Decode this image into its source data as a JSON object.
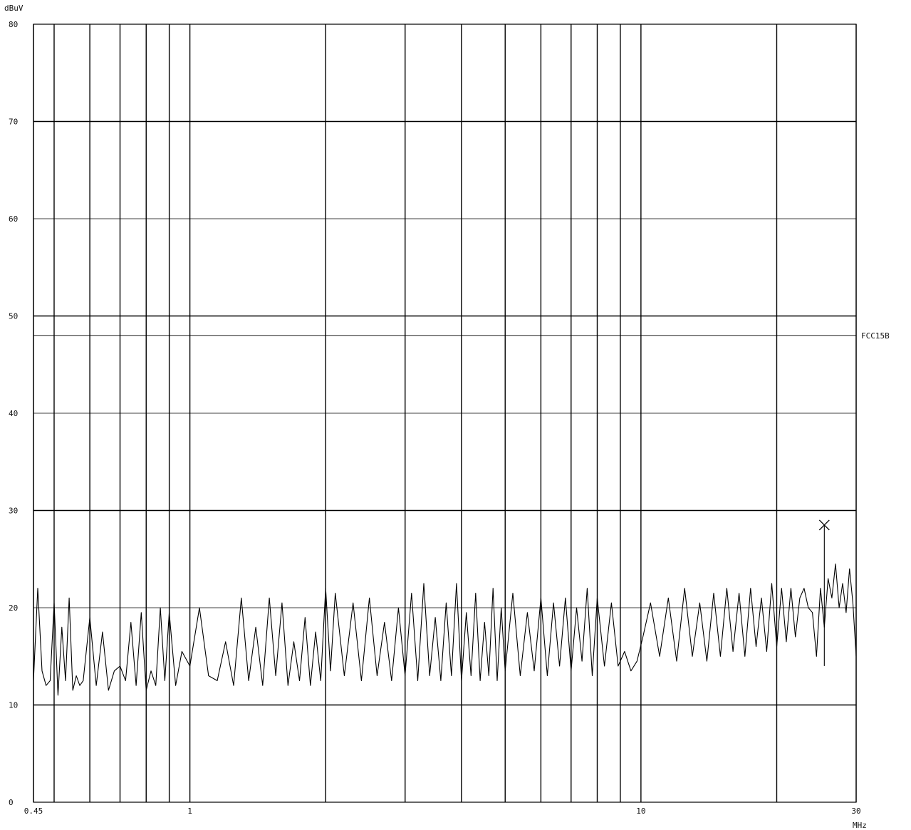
{
  "chart_data": {
    "type": "line",
    "ylabel": "dBuV",
    "xunit": "MHz",
    "x_scale": "log",
    "xlim": [
      0.45,
      30
    ],
    "ylim": [
      0,
      80
    ],
    "y_ticks": [
      0,
      10,
      20,
      30,
      40,
      50,
      60,
      70,
      80
    ],
    "y_tick_labels": [
      "0",
      "10",
      "20",
      "30",
      "40",
      "50",
      "60",
      "70",
      "80"
    ],
    "x_ticks": [
      0.45,
      1,
      10,
      30
    ],
    "x_tick_labels": [
      "0.45",
      "1",
      "10",
      "30"
    ],
    "x_minor_gridlines": [
      0.5,
      0.6,
      0.7,
      0.8,
      0.9,
      2,
      3,
      4,
      5,
      6,
      7,
      8,
      9,
      20
    ],
    "grid": true,
    "limit_line": {
      "name": "FCC15B",
      "value": 48
    },
    "marker": {
      "symbol": "x",
      "x": 25.5,
      "y": 28.5
    },
    "series": [
      {
        "x": [
          0.45,
          0.46,
          0.47,
          0.48,
          0.49,
          0.5,
          0.51,
          0.52,
          0.53,
          0.54,
          0.55,
          0.56,
          0.57,
          0.58,
          0.6,
          0.62,
          0.64,
          0.66,
          0.68,
          0.7,
          0.72,
          0.74,
          0.76,
          0.78,
          0.8,
          0.82,
          0.84,
          0.86,
          0.88,
          0.9,
          0.93,
          0.96,
          1.0,
          1.05,
          1.1,
          1.15,
          1.2,
          1.25,
          1.3,
          1.35,
          1.4,
          1.45,
          1.5,
          1.55,
          1.6,
          1.65,
          1.7,
          1.75,
          1.8,
          1.85,
          1.9,
          1.95,
          2.0,
          2.05,
          2.1,
          2.2,
          2.3,
          2.4,
          2.5,
          2.6,
          2.7,
          2.8,
          2.9,
          3.0,
          3.1,
          3.2,
          3.3,
          3.4,
          3.5,
          3.6,
          3.7,
          3.8,
          3.9,
          4.0,
          4.1,
          4.2,
          4.3,
          4.4,
          4.5,
          4.6,
          4.7,
          4.8,
          4.9,
          5.0,
          5.2,
          5.4,
          5.6,
          5.8,
          6.0,
          6.2,
          6.4,
          6.6,
          6.8,
          7.0,
          7.2,
          7.4,
          7.6,
          7.8,
          8.0,
          8.3,
          8.6,
          8.9,
          9.2,
          9.5,
          9.8,
          10.1,
          10.5,
          11.0,
          11.5,
          12.0,
          12.5,
          13.0,
          13.5,
          14.0,
          14.5,
          15.0,
          15.5,
          16.0,
          16.5,
          17.0,
          17.5,
          18.0,
          18.5,
          19.0,
          19.5,
          20.0,
          20.5,
          21.0,
          21.5,
          22.0,
          22.5,
          23.0,
          23.5,
          24.0,
          24.5,
          25.0,
          25.5,
          26.0,
          26.5,
          27.0,
          27.5,
          28.0,
          28.5,
          29.0,
          29.5,
          30.0
        ],
        "values": [
          12.5,
          22.0,
          13.5,
          12.0,
          12.5,
          20.5,
          11.0,
          18.0,
          12.5,
          21.0,
          11.5,
          13.0,
          12.0,
          12.5,
          19.0,
          12.0,
          17.5,
          11.5,
          13.5,
          14.0,
          12.5,
          18.5,
          12.0,
          19.5,
          11.5,
          13.5,
          12.0,
          20.0,
          12.5,
          19.5,
          12.0,
          15.5,
          14.0,
          20.0,
          13.0,
          12.5,
          16.5,
          12.0,
          21.0,
          12.5,
          18.0,
          12.0,
          21.0,
          13.0,
          20.5,
          12.0,
          16.5,
          12.5,
          19.0,
          12.0,
          17.5,
          12.5,
          22.0,
          13.5,
          21.5,
          13.0,
          20.5,
          12.5,
          21.0,
          13.0,
          18.5,
          12.5,
          20.0,
          13.0,
          21.5,
          12.5,
          22.5,
          13.0,
          19.0,
          12.5,
          20.5,
          13.0,
          22.5,
          12.5,
          19.5,
          13.0,
          21.5,
          12.5,
          18.5,
          13.0,
          22.0,
          12.5,
          20.0,
          13.5,
          21.5,
          13.0,
          19.5,
          13.5,
          21.0,
          13.0,
          20.5,
          14.0,
          21.0,
          13.5,
          20.0,
          14.5,
          22.0,
          13.0,
          21.0,
          14.0,
          20.5,
          14.0,
          15.5,
          13.5,
          14.5,
          17.0,
          20.5,
          15.0,
          21.0,
          14.5,
          22.0,
          15.0,
          20.5,
          14.5,
          21.5,
          15.0,
          22.0,
          15.5,
          21.5,
          15.0,
          22.0,
          16.0,
          21.0,
          15.5,
          22.5,
          16.0,
          22.0,
          16.5,
          22.0,
          17.0,
          21.0,
          22.0,
          20.0,
          19.5,
          15.0,
          22.0,
          18.0,
          23.0,
          21.0,
          24.5,
          20.0,
          22.5,
          19.5,
          24.0,
          20.5,
          15.0
        ]
      }
    ]
  }
}
